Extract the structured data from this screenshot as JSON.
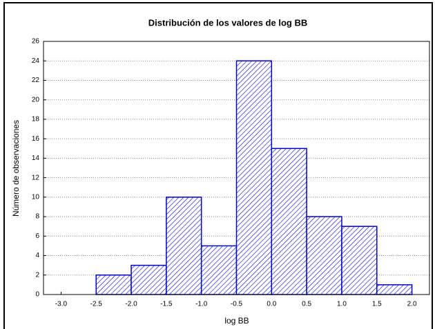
{
  "chart_data": {
    "type": "histogram",
    "title": "Distribución de los valores de log BB",
    "x_label": "log BB",
    "y_label": "Número de observaciones",
    "bins": [
      -2.5,
      -2.0,
      -1.5,
      -1.0,
      -0.5,
      0.0,
      0.5,
      1.0,
      1.5,
      2.0
    ],
    "values": [
      2,
      3,
      10,
      5,
      24,
      15,
      8,
      7,
      1
    ],
    "color": "#0000cc",
    "xlim": [
      -3.25,
      2.25
    ],
    "xticks": [
      {
        "value": -3,
        "label": "-3.0"
      },
      -2.5,
      {
        "value": -2,
        "label": "-2.0"
      },
      -1.5,
      {
        "value": -1,
        "label": "-1.0"
      },
      -0.5,
      {
        "value": 0,
        "label": "0.0"
      },
      0.5,
      {
        "value": 1,
        "label": "1.0"
      },
      1.5,
      {
        "value": 2,
        "label": "2.0"
      }
    ],
    "ylim": [
      0,
      26
    ],
    "yticks": [
      0,
      2,
      4,
      6,
      8,
      10,
      12,
      14,
      16,
      18,
      20,
      22,
      24,
      26
    ],
    "grid": true
  }
}
